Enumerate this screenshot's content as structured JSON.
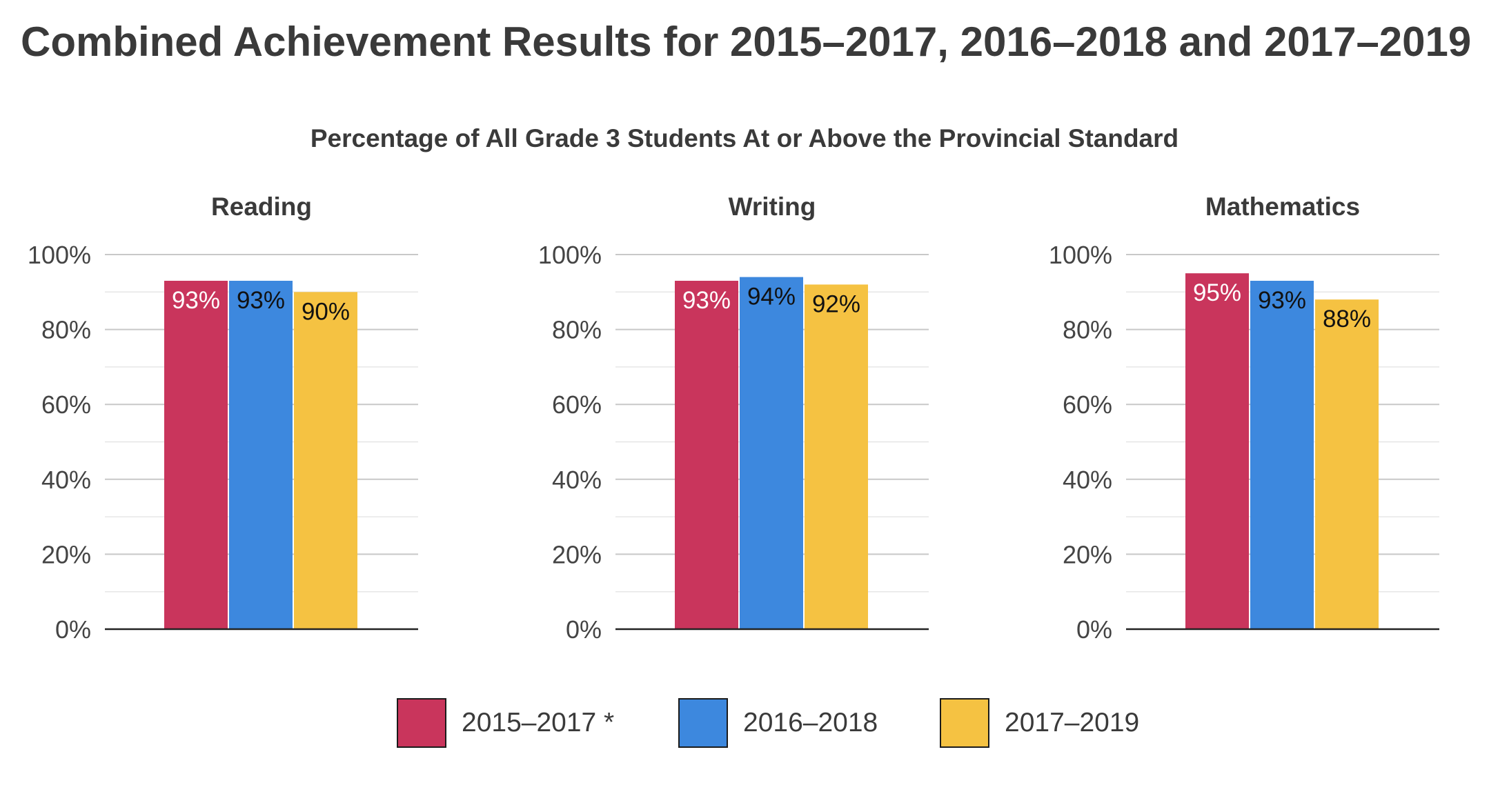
{
  "title": "Combined Achievement Results for 2015–2017, 2016–2018 and 2017–2019",
  "subtitle": "Percentage of All Grade 3 Students At or Above the Provincial Standard",
  "colors": {
    "series_1": "#c9355c",
    "series_2": "#3d88de",
    "series_3": "#f5c242",
    "axis": "#222222",
    "grid_major": "#c8c8c8",
    "grid_minor": "#e6e6e6",
    "tick_text": "#444444",
    "label_light": "#ffffff",
    "label_dark": "#111111"
  },
  "legend": {
    "placement": "bottom-center",
    "items": [
      {
        "label": "2015–2017 *",
        "color": "#c9355c"
      },
      {
        "label": "2016–2018",
        "color": "#3d88de"
      },
      {
        "label": "2017–2019",
        "color": "#f5c242"
      }
    ]
  },
  "chart_data": [
    {
      "type": "bar",
      "title": "Reading",
      "ylim": [
        0,
        100
      ],
      "yticks": [
        "0%",
        "20%",
        "40%",
        "60%",
        "80%",
        "100%"
      ],
      "grid": true,
      "series": [
        {
          "name": "2015–2017 *",
          "values": [
            93
          ],
          "labels": [
            "93%"
          ]
        },
        {
          "name": "2016–2018",
          "values": [
            93
          ],
          "labels": [
            "93%"
          ]
        },
        {
          "name": "2017–2019",
          "values": [
            90
          ],
          "labels": [
            "90%"
          ]
        }
      ]
    },
    {
      "type": "bar",
      "title": "Writing",
      "ylim": [
        0,
        100
      ],
      "yticks": [
        "0%",
        "20%",
        "40%",
        "60%",
        "80%",
        "100%"
      ],
      "grid": true,
      "series": [
        {
          "name": "2015–2017 *",
          "values": [
            93
          ],
          "labels": [
            "93%"
          ]
        },
        {
          "name": "2016–2018",
          "values": [
            94
          ],
          "labels": [
            "94%"
          ]
        },
        {
          "name": "2017–2019",
          "values": [
            92
          ],
          "labels": [
            "92%"
          ]
        }
      ]
    },
    {
      "type": "bar",
      "title": "Mathematics",
      "ylim": [
        0,
        100
      ],
      "yticks": [
        "0%",
        "20%",
        "40%",
        "60%",
        "80%",
        "100%"
      ],
      "grid": true,
      "series": [
        {
          "name": "2015–2017 *",
          "values": [
            95
          ],
          "labels": [
            "95%"
          ]
        },
        {
          "name": "2016–2018",
          "values": [
            93
          ],
          "labels": [
            "93%"
          ]
        },
        {
          "name": "2017–2019",
          "values": [
            88
          ],
          "labels": [
            "88%"
          ]
        }
      ]
    }
  ]
}
